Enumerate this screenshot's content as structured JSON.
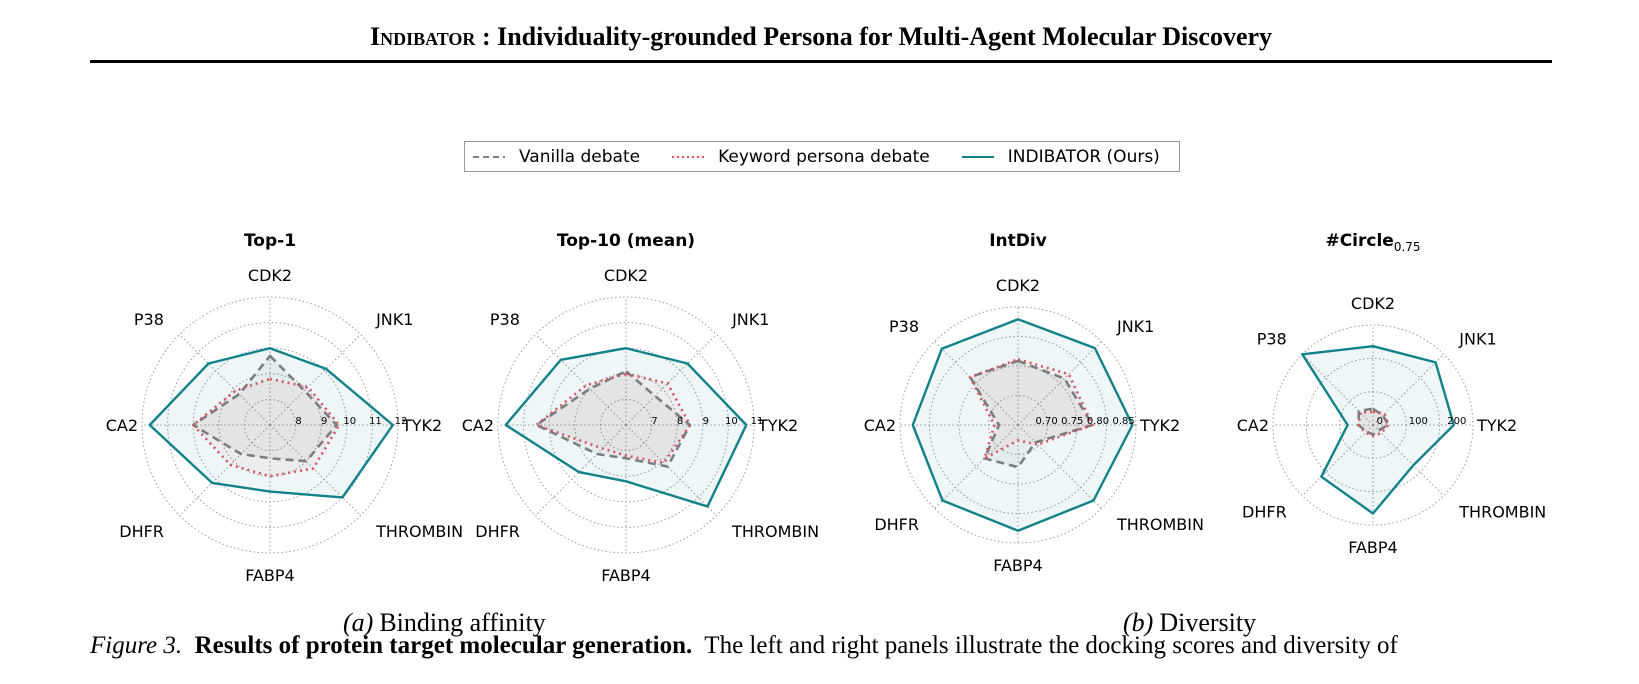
{
  "header": {
    "sc_word": "Indibator",
    "rest": " : Individuality-grounded Persona for Multi-Agent Molecular Discovery"
  },
  "legend": [
    {
      "label": "Vanilla debate",
      "color": "#808080",
      "style": "dashed"
    },
    {
      "label": "Keyword persona debate",
      "color": "#e0535c",
      "style": "dotted"
    },
    {
      "label": "INDIBATOR (Ours)",
      "color": "#12828a",
      "style": "solid"
    }
  ],
  "chart_data": [
    {
      "type": "radar",
      "title": "Top-1",
      "axes": [
        "CDK2",
        "JNK1",
        "TYK2",
        "THROMBIN",
        "FABP4",
        "DHFR",
        "CA2",
        "P38"
      ],
      "rmin": 7,
      "rmax": 12,
      "tick_labels": [
        "8",
        "9",
        "10",
        "11",
        "12"
      ],
      "series": [
        {
          "name": "Vanilla debate",
          "values": [
            9.7,
            8.9,
            9.6,
            9.0,
            8.3,
            8.6,
            10.0,
            8.7
          ]
        },
        {
          "name": "Keyword persona debate",
          "values": [
            8.8,
            9.1,
            9.7,
            9.4,
            9.0,
            9.2,
            10.0,
            8.9
          ]
        },
        {
          "name": "INDIBATOR (Ours)",
          "values": [
            10.0,
            10.1,
            11.8,
            11.0,
            9.6,
            10.2,
            11.7,
            10.4
          ]
        }
      ]
    },
    {
      "type": "radar",
      "title": "Top-10 (mean)",
      "axes": [
        "CDK2",
        "JNK1",
        "TYK2",
        "THROMBIN",
        "FABP4",
        "DHFR",
        "CA2",
        "P38"
      ],
      "rmin": 6,
      "rmax": 11,
      "tick_labels": [
        "7",
        "8",
        "9",
        "10",
        "11"
      ],
      "series": [
        {
          "name": "Vanilla debate",
          "values": [
            8.1,
            7.6,
            8.5,
            8.3,
            7.3,
            7.6,
            9.5,
            8.0
          ]
        },
        {
          "name": "Keyword persona debate",
          "values": [
            8.0,
            8.3,
            8.5,
            8.1,
            7.2,
            7.3,
            9.5,
            8.2
          ]
        },
        {
          "name": "INDIBATOR (Ours)",
          "values": [
            9.0,
            9.4,
            10.7,
            10.5,
            8.2,
            8.6,
            10.7,
            9.6
          ]
        }
      ]
    },
    {
      "type": "radar",
      "title": "IntDiv",
      "axes": [
        "CDK2",
        "JNK1",
        "TYK2",
        "THROMBIN",
        "FABP4",
        "DHFR",
        "CA2",
        "P38"
      ],
      "rmin": 0.65,
      "rmax": 0.88,
      "tick_labels": [
        "0.70",
        "0.75",
        "0.80",
        "0.85"
      ],
      "series": [
        {
          "name": "Vanilla debate",
          "values": [
            0.775,
            0.778,
            0.795,
            0.698,
            0.732,
            0.742,
            0.687,
            0.782
          ]
        },
        {
          "name": "Keyword persona debate",
          "values": [
            0.778,
            0.79,
            0.795,
            0.704,
            0.68,
            0.742,
            0.696,
            0.782
          ]
        },
        {
          "name": "INDIBATOR (Ours)",
          "values": [
            0.856,
            0.862,
            0.873,
            0.858,
            0.856,
            0.858,
            0.855,
            0.86
          ]
        }
      ]
    },
    {
      "type": "radar",
      "title": "#Circle",
      "title_subscript": "0.75",
      "axes": [
        "CDK2",
        "JNK1",
        "TYK2",
        "THROMBIN",
        "FABP4",
        "DHFR",
        "CA2",
        "P38"
      ],
      "rmin": -10,
      "rmax": 250,
      "tick_labels": [
        "0",
        "100",
        "200"
      ],
      "series": [
        {
          "name": "Vanilla debate",
          "values": [
            32,
            26,
            30,
            10,
            15,
            14,
            28,
            42
          ]
        },
        {
          "name": "Keyword persona debate",
          "values": [
            24,
            32,
            30,
            20,
            18,
            18,
            28,
            36
          ]
        },
        {
          "name": "INDIBATOR (Ours)",
          "values": [
            195,
            220,
            200,
            138,
            220,
            180,
            56,
            250
          ]
        }
      ]
    }
  ],
  "captions": [
    {
      "letter": "(a)",
      "text": "Binding affinity"
    },
    {
      "letter": "(b)",
      "text": "Diversity"
    }
  ],
  "figure_caption": {
    "label": "Figure 3.",
    "bold": "Results of protein target molecular generation.",
    "text": "The left and right panels illustrate the docking scores and diversity of"
  }
}
